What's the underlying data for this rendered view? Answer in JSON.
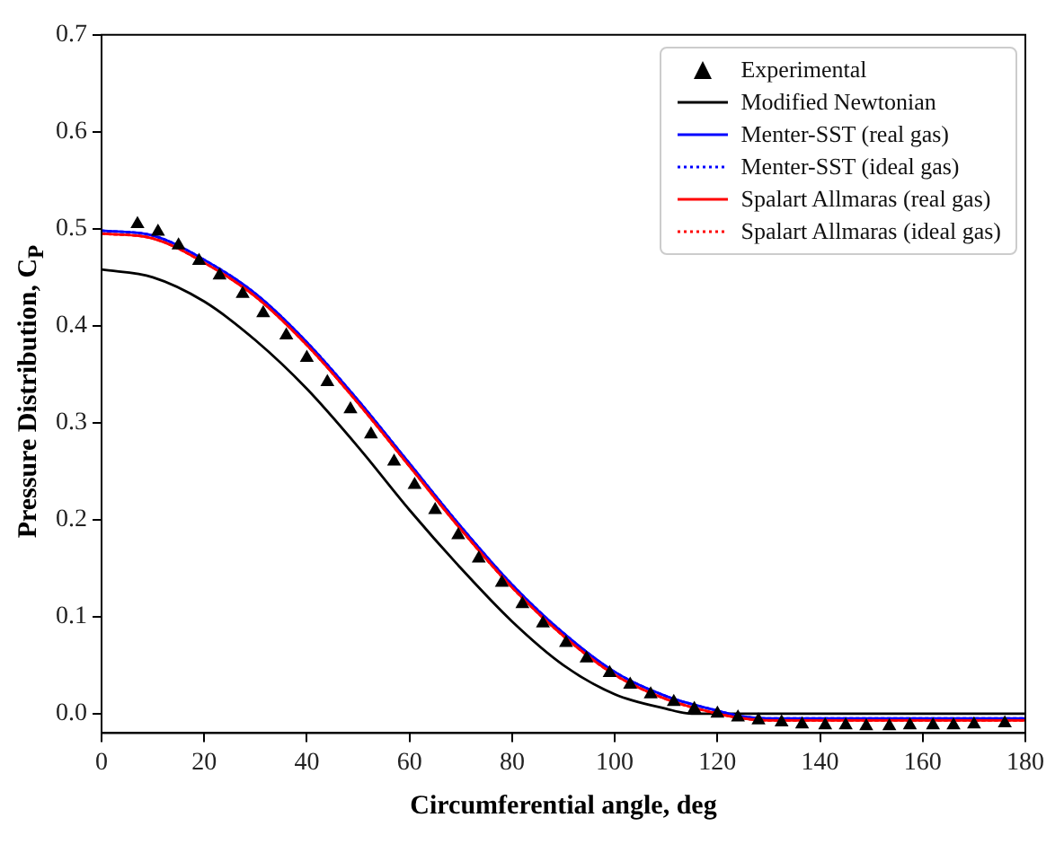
{
  "chart_data": {
    "type": "line",
    "xlabel": "Circumferential angle, deg",
    "ylabel": "Pressure Distribution, C$_{P}$",
    "xlim": [
      0,
      180
    ],
    "xticks": [
      0,
      20,
      40,
      60,
      80,
      100,
      120,
      140,
      160,
      180
    ],
    "ylim": [
      -0.02,
      0.7
    ],
    "yticks": [
      {
        "value": 0,
        "label": "0.0"
      },
      0.1,
      0.2,
      0.3,
      0.4,
      0.5,
      0.6,
      0.7
    ],
    "legend": "top right",
    "grid": false,
    "series": [
      {
        "name": "Experimental",
        "type": "scatter",
        "marker": "triangle",
        "color": "#000000",
        "x": [
          7,
          11,
          15,
          19,
          23,
          27.5,
          31.5,
          36,
          40,
          44,
          48.5,
          52.5,
          57,
          61,
          65,
          69.5,
          73.5,
          78,
          82,
          86,
          90.5,
          94.5,
          99,
          103,
          107,
          111.5,
          115.5,
          120,
          124,
          128,
          132.5,
          136.5,
          141,
          145,
          149,
          153.5,
          157.5,
          162,
          166,
          170,
          176
        ],
        "values": [
          0.505,
          0.497,
          0.483,
          0.467,
          0.452,
          0.433,
          0.413,
          0.39,
          0.367,
          0.342,
          0.314,
          0.288,
          0.26,
          0.236,
          0.21,
          0.184,
          0.16,
          0.135,
          0.113,
          0.093,
          0.073,
          0.057,
          0.042,
          0.03,
          0.02,
          0.012,
          0.005,
          0.0,
          -0.004,
          -0.007,
          -0.009,
          -0.011,
          -0.012,
          -0.012,
          -0.013,
          -0.013,
          -0.012,
          -0.012,
          -0.012,
          -0.011,
          -0.01
        ]
      },
      {
        "name": "Modified Newtonian",
        "line_style": "solid",
        "color": "#000000",
        "x": [
          0,
          10,
          20,
          30,
          40,
          50,
          60,
          70,
          80,
          90,
          100,
          110,
          115,
          120,
          180
        ],
        "values": [
          0.458,
          0.45,
          0.425,
          0.385,
          0.335,
          0.275,
          0.21,
          0.15,
          0.095,
          0.05,
          0.02,
          0.005,
          0.0,
          0.0,
          0.0
        ]
      },
      {
        "name": "Menter-SST (real gas)",
        "line_style": "solid",
        "color": "#0000ff",
        "x": [
          0,
          10,
          20,
          30,
          40,
          50,
          60,
          70,
          80,
          90,
          100,
          110,
          120,
          125,
          130,
          180
        ],
        "values": [
          0.498,
          0.493,
          0.468,
          0.433,
          0.383,
          0.323,
          0.258,
          0.193,
          0.133,
          0.083,
          0.043,
          0.018,
          0.003,
          -0.003,
          -0.005,
          -0.005
        ]
      },
      {
        "name": "Menter-SST (ideal gas)",
        "line_style": "dotted",
        "color": "#0000ff",
        "x": [
          0,
          10,
          20,
          30,
          40,
          50,
          60,
          70,
          80,
          90,
          100,
          110,
          120,
          125,
          130,
          180
        ],
        "values": [
          0.498,
          0.493,
          0.468,
          0.433,
          0.383,
          0.323,
          0.258,
          0.193,
          0.133,
          0.083,
          0.043,
          0.018,
          0.003,
          -0.003,
          -0.005,
          -0.005
        ]
      },
      {
        "name": "Spalart Allmaras (real gas)",
        "line_style": "solid",
        "color": "#ff0000",
        "x": [
          0,
          10,
          20,
          30,
          40,
          50,
          60,
          70,
          80,
          90,
          100,
          110,
          120,
          125,
          130,
          180
        ],
        "values": [
          0.495,
          0.49,
          0.465,
          0.43,
          0.38,
          0.32,
          0.255,
          0.19,
          0.13,
          0.08,
          0.04,
          0.015,
          0.0,
          -0.005,
          -0.007,
          -0.007
        ]
      },
      {
        "name": "Spalart Allmaras (ideal gas)",
        "line_style": "dotted",
        "color": "#ff0000",
        "x": [
          0,
          10,
          20,
          30,
          40,
          50,
          60,
          70,
          80,
          90,
          100,
          110,
          120,
          125,
          130,
          180
        ],
        "values": [
          0.495,
          0.49,
          0.465,
          0.43,
          0.38,
          0.32,
          0.255,
          0.19,
          0.13,
          0.08,
          0.04,
          0.015,
          0.0,
          -0.005,
          -0.007,
          -0.007
        ]
      }
    ]
  }
}
